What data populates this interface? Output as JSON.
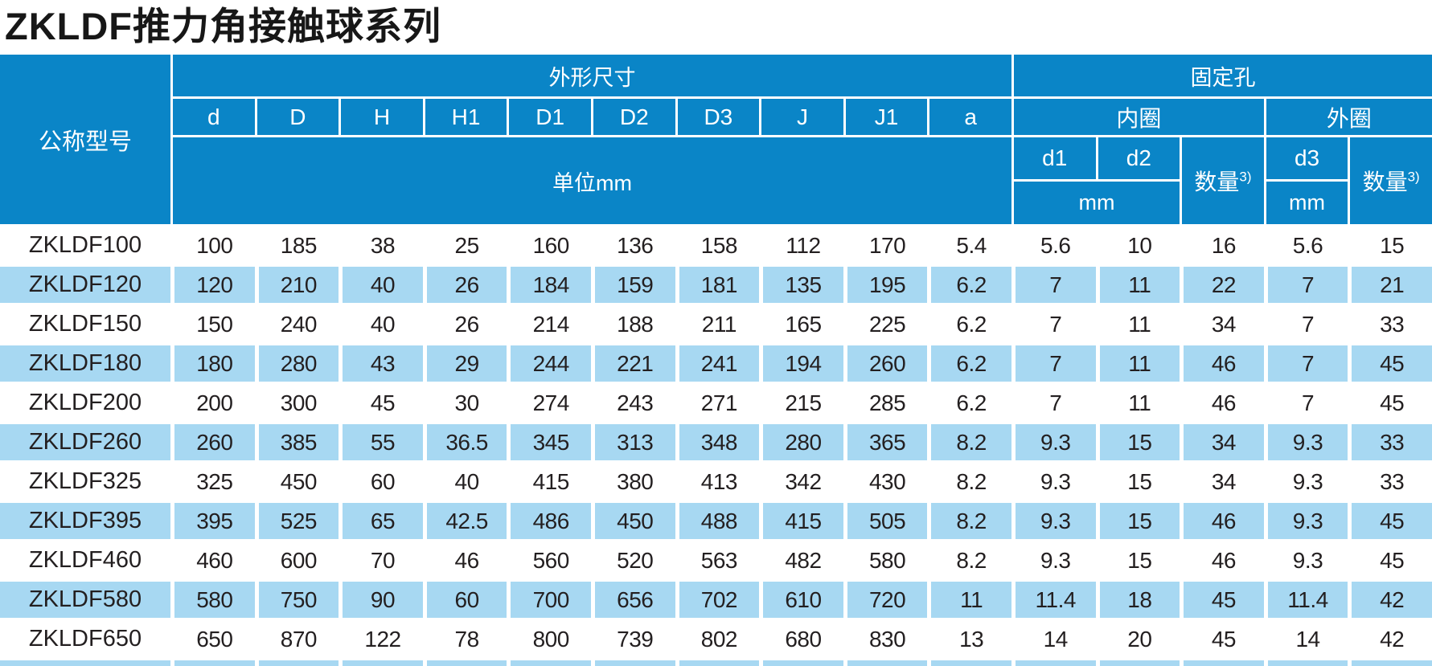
{
  "title": "ZKLDF推力角接触球系列",
  "colors": {
    "header_blue": "#0a85c7",
    "row_blue": "#a7d8f2",
    "text": "#231f20"
  },
  "table": {
    "model_header": "公称型号",
    "dim_group_header": "外形尺寸",
    "hole_group_header": "固定孔",
    "dim_columns": [
      "d",
      "D",
      "H",
      "H1",
      "D1",
      "D2",
      "D3",
      "J",
      "J1",
      "a"
    ],
    "dim_unit_label": "单位mm",
    "inner_ring_header": "内圈",
    "outer_ring_header": "外圈",
    "inner_columns": [
      "d1",
      "d2"
    ],
    "outer_column": "d3",
    "qty_label": "数量",
    "qty_sup": "3)",
    "mm_label": "mm",
    "rows": [
      {
        "model": "ZKLDF100",
        "dims": [
          "100",
          "185",
          "38",
          "25",
          "160",
          "136",
          "158",
          "112",
          "170",
          "5.4"
        ],
        "inner": [
          "5.6",
          "10",
          "16"
        ],
        "outer": [
          "5.6",
          "15"
        ]
      },
      {
        "model": "ZKLDF120",
        "dims": [
          "120",
          "210",
          "40",
          "26",
          "184",
          "159",
          "181",
          "135",
          "195",
          "6.2"
        ],
        "inner": [
          "7",
          "11",
          "22"
        ],
        "outer": [
          "7",
          "21"
        ]
      },
      {
        "model": "ZKLDF150",
        "dims": [
          "150",
          "240",
          "40",
          "26",
          "214",
          "188",
          "211",
          "165",
          "225",
          "6.2"
        ],
        "inner": [
          "7",
          "11",
          "34"
        ],
        "outer": [
          "7",
          "33"
        ]
      },
      {
        "model": "ZKLDF180",
        "dims": [
          "180",
          "280",
          "43",
          "29",
          "244",
          "221",
          "241",
          "194",
          "260",
          "6.2"
        ],
        "inner": [
          "7",
          "11",
          "46"
        ],
        "outer": [
          "7",
          "45"
        ]
      },
      {
        "model": "ZKLDF200",
        "dims": [
          "200",
          "300",
          "45",
          "30",
          "274",
          "243",
          "271",
          "215",
          "285",
          "6.2"
        ],
        "inner": [
          "7",
          "11",
          "46"
        ],
        "outer": [
          "7",
          "45"
        ]
      },
      {
        "model": "ZKLDF260",
        "dims": [
          "260",
          "385",
          "55",
          "36.5",
          "345",
          "313",
          "348",
          "280",
          "365",
          "8.2"
        ],
        "inner": [
          "9.3",
          "15",
          "34"
        ],
        "outer": [
          "9.3",
          "33"
        ]
      },
      {
        "model": "ZKLDF325",
        "dims": [
          "325",
          "450",
          "60",
          "40",
          "415",
          "380",
          "413",
          "342",
          "430",
          "8.2"
        ],
        "inner": [
          "9.3",
          "15",
          "34"
        ],
        "outer": [
          "9.3",
          "33"
        ]
      },
      {
        "model": "ZKLDF395",
        "dims": [
          "395",
          "525",
          "65",
          "42.5",
          "486",
          "450",
          "488",
          "415",
          "505",
          "8.2"
        ],
        "inner": [
          "9.3",
          "15",
          "46"
        ],
        "outer": [
          "9.3",
          "45"
        ]
      },
      {
        "model": "ZKLDF460",
        "dims": [
          "460",
          "600",
          "70",
          "46",
          "560",
          "520",
          "563",
          "482",
          "580",
          "8.2"
        ],
        "inner": [
          "9.3",
          "15",
          "46"
        ],
        "outer": [
          "9.3",
          "45"
        ]
      },
      {
        "model": "ZKLDF580",
        "dims": [
          "580",
          "750",
          "90",
          "60",
          "700",
          "656",
          "702",
          "610",
          "720",
          "11"
        ],
        "inner": [
          "11.4",
          "18",
          "45"
        ],
        "outer": [
          "11.4",
          "42"
        ]
      },
      {
        "model": "ZKLDF650",
        "dims": [
          "650",
          "870",
          "122",
          "78",
          "800",
          "739",
          "802",
          "680",
          "830",
          "13"
        ],
        "inner": [
          "14",
          "20",
          "45"
        ],
        "outer": [
          "14",
          "42"
        ]
      }
    ]
  }
}
